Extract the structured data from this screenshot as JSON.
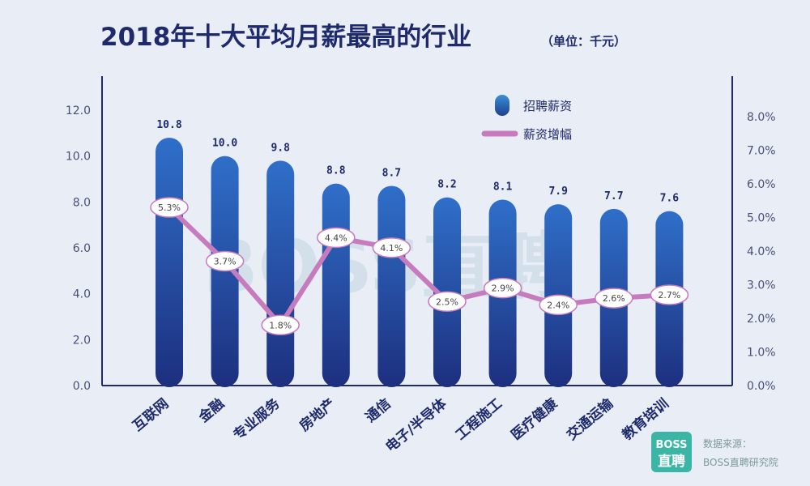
{
  "chart_data": {
    "type": "bar",
    "title": "2018年十大平均月薪最高的行业",
    "unit_label": "（单位：千元）",
    "categories": [
      "互联网",
      "金融",
      "专业服务",
      "房地产",
      "通信",
      "电子/半导体",
      "工程施工",
      "医疗健康",
      "交通运输",
      "教育培训"
    ],
    "series": [
      {
        "name": "招聘薪资",
        "type": "bar",
        "axis": "left",
        "values": [
          10.8,
          10.0,
          9.8,
          8.8,
          8.7,
          8.2,
          8.1,
          7.9,
          7.7,
          7.6
        ],
        "labels": [
          "10.8",
          "10.0",
          "9.8",
          "8.8",
          "8.7",
          "8.2",
          "8.1",
          "7.9",
          "7.7",
          "7.6"
        ]
      },
      {
        "name": "薪资增幅",
        "type": "line",
        "axis": "right",
        "values": [
          5.3,
          3.7,
          1.8,
          4.4,
          4.1,
          2.5,
          2.9,
          2.4,
          2.6,
          2.7
        ],
        "labels": [
          "5.3%",
          "3.7%",
          "1.8%",
          "4.4%",
          "4.1%",
          "2.5%",
          "2.9%",
          "2.4%",
          "2.6%",
          "2.7%"
        ]
      }
    ],
    "ylim_left": [
      0,
      12
    ],
    "yticks_left": [
      "0.0",
      "2.0",
      "4.0",
      "6.0",
      "8.0",
      "10.0",
      "12.0"
    ],
    "ylim_right": [
      0,
      8
    ],
    "yticks_right": [
      "0.0%",
      "1.0%",
      "2.0%",
      "3.0%",
      "4.0%",
      "5.0%",
      "6.0%",
      "7.0%",
      "8.0%"
    ],
    "legend_position": "top-right",
    "grid": false
  },
  "watermark": "BOSS直聘",
  "footer": {
    "logo_top": "BOSS",
    "logo_bottom": "直聘",
    "source_line1": "数据来源：",
    "source_line2": "BOSS直聘研究院"
  },
  "colors": {
    "bar_top": "#2f6fc9",
    "bar_bottom": "#1d2f7e",
    "line": "#c77bbf",
    "axis": "#1e2a6b",
    "logo": "#3bb5a6"
  }
}
